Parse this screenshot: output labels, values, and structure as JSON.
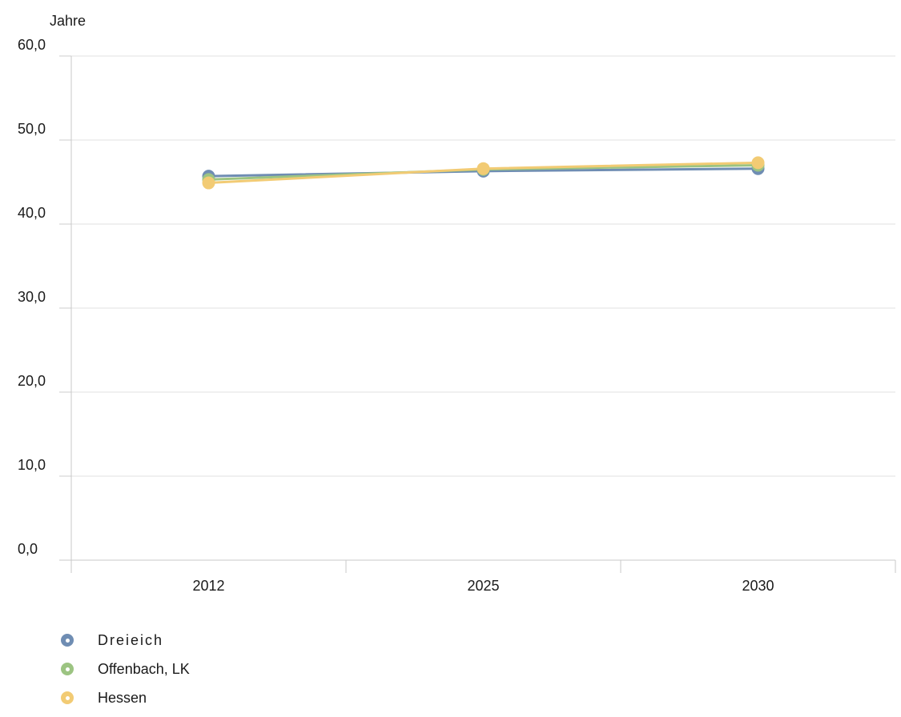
{
  "chart_data": {
    "type": "line",
    "ylabel": "Jahre",
    "categories": [
      "2012",
      "2025",
      "2030"
    ],
    "ylim": [
      0,
      60
    ],
    "yticks": [
      "0,0",
      "10,0",
      "20,0",
      "30,0",
      "40,0",
      "50,0",
      "60,0"
    ],
    "grid": true,
    "legend_position": "bottom-left",
    "series": [
      {
        "name": "Dreieich",
        "values": [
          45.7,
          46.3,
          46.6
        ],
        "color": "#6f8db3"
      },
      {
        "name": "Offenbach, LK",
        "values": [
          45.3,
          46.5,
          47.0
        ],
        "color": "#9cc482"
      },
      {
        "name": "Hessen",
        "values": [
          44.9,
          46.6,
          47.3
        ],
        "color": "#f2cb74"
      }
    ]
  }
}
